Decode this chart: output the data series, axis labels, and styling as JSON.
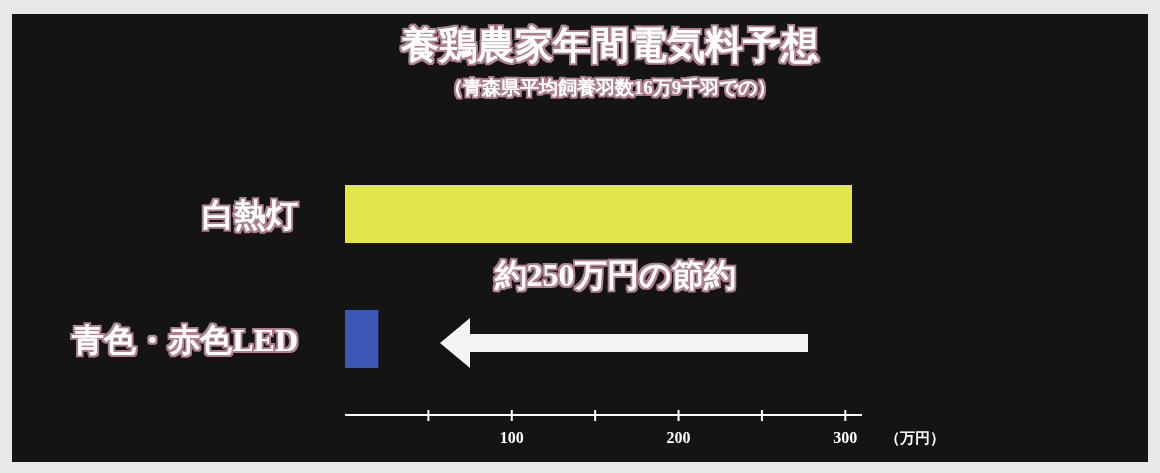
{
  "chart_data": {
    "type": "bar",
    "orientation": "horizontal",
    "title": "養鶏農家年間電気料予想",
    "subtitle": "（青森県平均飼養羽数16万9千羽での）",
    "xlabel": "（万円）",
    "categories": [
      "白熱灯",
      "青色・赤色LED"
    ],
    "values": [
      304,
      20
    ],
    "colors": [
      "#e3e64a",
      "#3b56b4"
    ],
    "xlim": [
      0,
      310
    ],
    "xticks": [
      {
        "value": 50,
        "label": null
      },
      100,
      {
        "value": 150,
        "label": null
      },
      200,
      {
        "value": 250,
        "label": null
      },
      300
    ],
    "annotations": [
      "約250万円の節約"
    ]
  }
}
